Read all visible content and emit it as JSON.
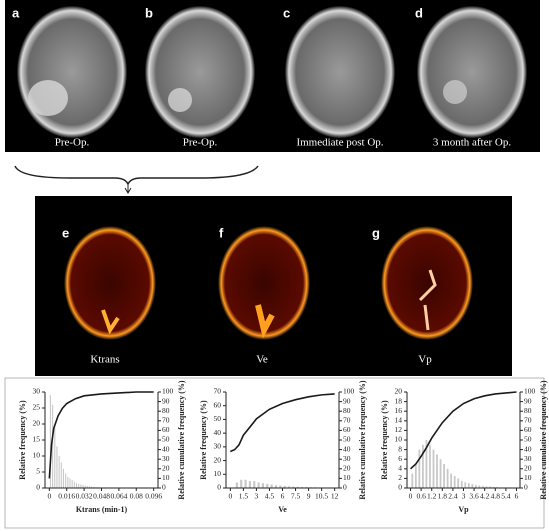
{
  "figure": {
    "top_panels": [
      {
        "label": "a",
        "caption": "Pre-Op."
      },
      {
        "label": "b",
        "caption": "Pre-Op."
      },
      {
        "label": "c",
        "caption": "Immediate post Op."
      },
      {
        "label": "d",
        "caption": "3 month after Op."
      }
    ],
    "map_panels": [
      {
        "label": "e",
        "caption": "Ktrans"
      },
      {
        "label": "f",
        "caption": "Ve"
      },
      {
        "label": "g",
        "caption": "Vp"
      }
    ]
  },
  "chart_data": [
    {
      "type": "histogram",
      "x_label": "Ktrans (min-1)",
      "y_label": "Relative frequency (%)",
      "y2_label": "Relative cumulative frequency (%)",
      "bins": [
        0,
        0.002,
        0.004,
        0.006,
        0.008,
        0.01,
        0.012,
        0.014,
        0.016,
        0.018,
        0.02,
        0.022,
        0.024,
        0.026,
        0.028,
        0.03,
        0.032,
        0.034,
        0.036,
        0.038,
        0.04,
        0.042,
        0.044,
        0.046,
        0.048,
        0.05
      ],
      "values": [
        29,
        26,
        19,
        13,
        10,
        8,
        6,
        4.5,
        3.5,
        3,
        2.5,
        2,
        1.6,
        1.3,
        1.1,
        0.9,
        0.7,
        0.6,
        0.5,
        0.4,
        0.3,
        0.3,
        0.2,
        0.2,
        0.1
      ],
      "color": "#c8c8c8",
      "cumulative": {
        "x": [
          0,
          0.002,
          0.004,
          0.008,
          0.012,
          0.016,
          0.024,
          0.032,
          0.048,
          0.064,
          0.08,
          0.096
        ],
        "values": [
          10,
          45,
          62,
          75,
          83,
          88,
          93,
          96,
          98,
          99,
          100,
          100
        ],
        "axis": "y2",
        "color": "#1a1a1a"
      },
      "xlim": [
        -0.004,
        0.1
      ],
      "xticks": [
        0,
        0.016,
        0.032,
        0.048,
        0.064,
        0.08,
        0.096
      ],
      "ylim": [
        0,
        30
      ],
      "yticks": [
        0,
        5,
        10,
        15,
        20,
        25,
        30
      ],
      "y2lim": [
        0,
        100
      ],
      "y2ticks": [
        0,
        10,
        20,
        30,
        40,
        50,
        60,
        70,
        80,
        90,
        100
      ]
    },
    {
      "type": "histogram",
      "x_label": "Ve",
      "y_label": "Relative frequency (%)",
      "y2_label": "Relative cumulative frequency (%)",
      "bins": [
        0.5,
        1,
        1.5,
        2,
        2.5,
        3,
        3.5,
        4,
        4.5,
        5,
        5.5,
        6,
        6.5,
        7,
        7.5,
        8,
        8.5,
        9,
        9.5,
        10,
        10.5
      ],
      "values": [
        4,
        6,
        6,
        5,
        5,
        4,
        3.5,
        3,
        2.5,
        2,
        1.8,
        1.5,
        1.2,
        1,
        0.9,
        0.8,
        0.7,
        0.6,
        0.5,
        0.4
      ],
      "color": "#c8c8c8",
      "cumulative": {
        "x": [
          0,
          0.5,
          1,
          1.5,
          3,
          4.5,
          6,
          7.5,
          9,
          10.5,
          12
        ],
        "values": [
          38,
          40,
          45,
          55,
          72,
          82,
          88,
          92,
          95,
          97,
          98
        ],
        "axis": "y2",
        "color": "#1a1a1a"
      },
      "xlim": [
        -0.5,
        12.5
      ],
      "xticks": [
        0,
        1.5,
        3,
        4.5,
        6,
        7.5,
        9,
        10.5,
        12
      ],
      "ylim": [
        0,
        70
      ],
      "yticks": [
        0,
        10,
        20,
        30,
        40,
        50,
        60,
        70
      ],
      "y2lim": [
        0,
        100
      ],
      "y2ticks": [
        0,
        10,
        20,
        30,
        40,
        50,
        60,
        70,
        80,
        90,
        100
      ]
    },
    {
      "type": "histogram",
      "x_label": "Vp",
      "y_label": "Relative frequency (%)",
      "y2_label": "Relative cumulative frequency (%)",
      "bins": [
        0,
        0.2,
        0.4,
        0.6,
        0.8,
        1,
        1.2,
        1.4,
        1.6,
        1.8,
        2,
        2.2,
        2.4,
        2.6,
        2.8,
        3,
        3.2,
        3.4,
        3.6,
        3.8,
        4,
        4.2,
        4.4,
        4.6,
        4.8,
        5
      ],
      "values": [
        3,
        5,
        8,
        9,
        10,
        9,
        8,
        7,
        6,
        5,
        4,
        3,
        2.5,
        2,
        1.5,
        1.2,
        1,
        0.8,
        0.6,
        0.5,
        0.4,
        0.3,
        0.3,
        0.2,
        0.2
      ],
      "color": "#c8c8c8",
      "cumulative": {
        "x": [
          0,
          0.3,
          0.6,
          0.9,
          1.2,
          1.8,
          2.4,
          3,
          3.6,
          4.2,
          4.8,
          6
        ],
        "values": [
          20,
          25,
          33,
          42,
          52,
          68,
          80,
          88,
          93,
          96,
          98,
          100
        ],
        "axis": "y2",
        "color": "#1a1a1a"
      },
      "xlim": [
        -0.2,
        6.2
      ],
      "xticks": [
        0,
        0.6,
        1.2,
        1.8,
        2.4,
        3,
        3.6,
        4.2,
        4.8,
        5.4,
        6
      ],
      "ylim": [
        0,
        20
      ],
      "yticks": [
        0,
        2,
        4,
        6,
        8,
        10,
        12,
        14,
        16,
        18,
        20
      ],
      "y2lim": [
        0,
        100
      ],
      "y2ticks": [
        0,
        10,
        20,
        30,
        40,
        50,
        60,
        70,
        80,
        90,
        100
      ]
    }
  ]
}
